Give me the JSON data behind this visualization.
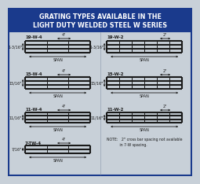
{
  "title_line1": "GRATING TYPES AVAILABLE IN THE",
  "title_line2": "LIGHT DUTY WELDED STEEL W SERIES",
  "title_bg": "#1a3a8c",
  "title_color": "#ffffff",
  "bg_color": "#c8d0d8",
  "border_color": "#1a3a8c",
  "grating_color": "#1a1a1a",
  "note_line1": "NOTE:   2\" cross bar spacing not available",
  "note_line2": "           in 7-W spacing.",
  "span_label": "SPAN",
  "left_gratings": [
    {
      "name": "19-W-4",
      "depth": "1-3/16\"",
      "spacing_lbl": "4\"",
      "n_hbars": 4,
      "n_cross": 3
    },
    {
      "name": "15-W-4",
      "depth": "15/16\"",
      "spacing_lbl": "4\"",
      "n_hbars": 4,
      "n_cross": 3
    },
    {
      "name": "11-W-4",
      "depth": "11/16\"",
      "spacing_lbl": "4\"",
      "n_hbars": 4,
      "n_cross": 3
    },
    {
      "name": "7-TW-4",
      "depth": "7/16\"",
      "spacing_lbl": "4\"",
      "n_hbars": 3,
      "n_cross": 3
    }
  ],
  "right_gratings": [
    {
      "name": "19-W-2",
      "depth": "1-3/16\"",
      "spacing_lbl": "2\"",
      "n_hbars": 4,
      "n_cross": 6
    },
    {
      "name": "15-W-2",
      "depth": "15/16\"",
      "spacing_lbl": "2\"",
      "n_hbars": 4,
      "n_cross": 6
    },
    {
      "name": "11-W-2",
      "depth": "11/16\"",
      "spacing_lbl": "2\"",
      "n_hbars": 4,
      "n_cross": 6
    }
  ]
}
